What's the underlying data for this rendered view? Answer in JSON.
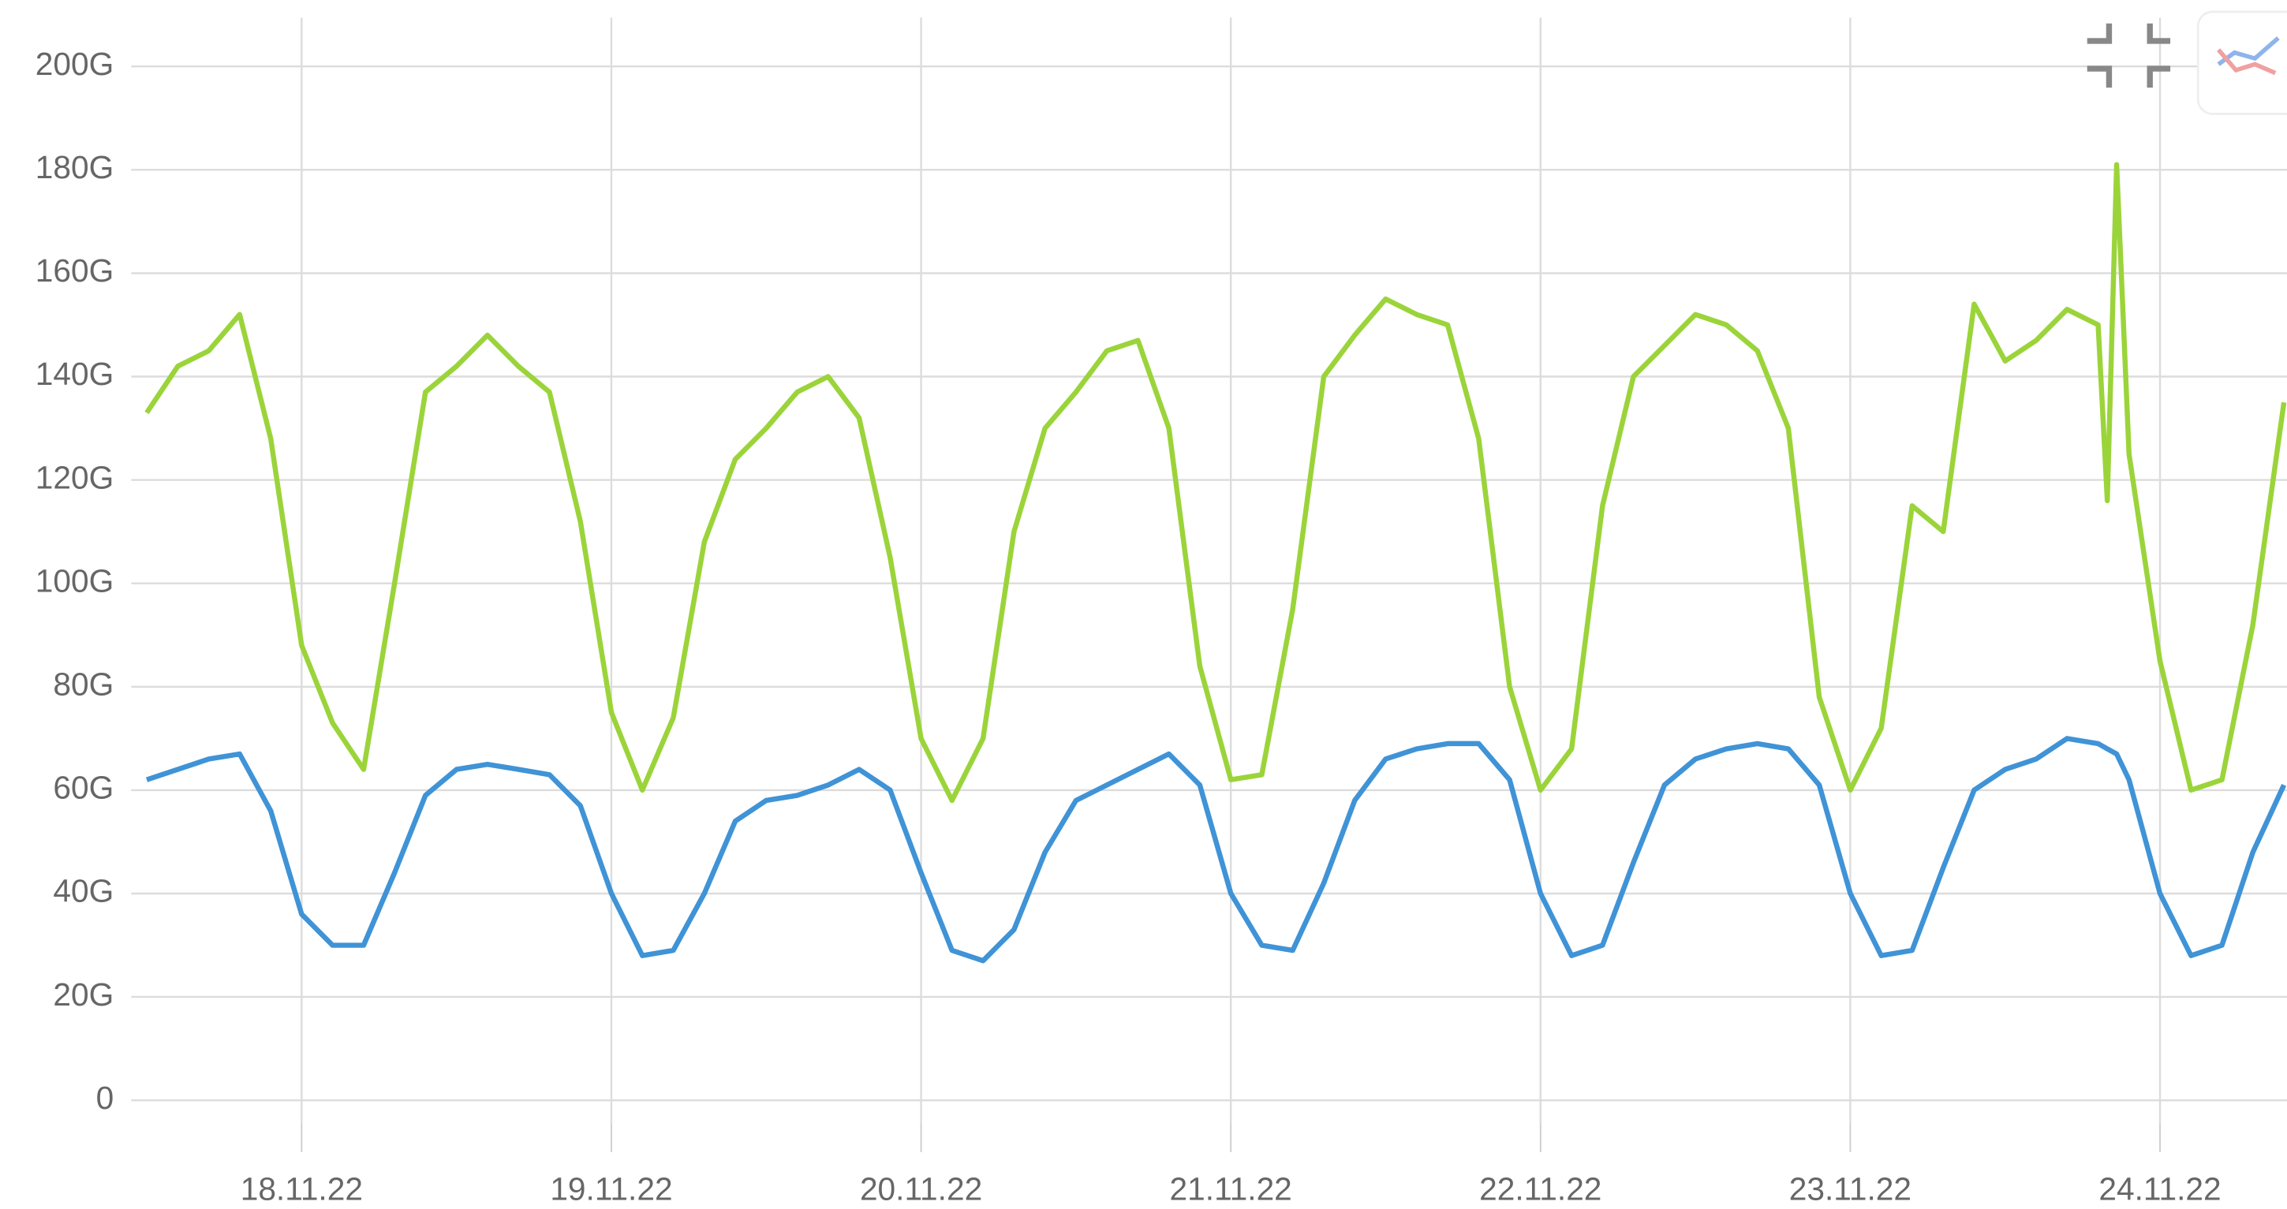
{
  "chart_data": {
    "type": "line",
    "x": [
      17.5,
      17.6,
      17.7,
      17.8,
      17.9,
      18.0,
      18.1,
      18.2,
      18.3,
      18.4,
      18.5,
      18.6,
      18.7,
      18.8,
      18.9,
      19.0,
      19.1,
      19.2,
      19.3,
      19.4,
      19.5,
      19.6,
      19.7,
      19.8,
      19.9,
      20.0,
      20.1,
      20.2,
      20.3,
      20.4,
      20.5,
      20.6,
      20.7,
      20.8,
      20.9,
      21.0,
      21.1,
      21.2,
      21.3,
      21.4,
      21.5,
      21.6,
      21.7,
      21.8,
      21.9,
      22.0,
      22.1,
      22.2,
      22.3,
      22.4,
      22.5,
      22.6,
      22.7,
      22.8,
      22.9,
      23.0,
      23.1,
      23.2,
      23.3,
      23.4,
      23.5,
      23.6,
      23.7,
      23.8,
      23.83,
      23.86,
      23.9,
      24.0,
      24.1,
      24.2,
      24.3,
      24.4
    ],
    "series": [
      {
        "color": "#9bd43a",
        "values": [
          133,
          142,
          145,
          152,
          128,
          88,
          73,
          64,
          100,
          137,
          142,
          148,
          142,
          137,
          112,
          75,
          60,
          74,
          108,
          124,
          130,
          137,
          140,
          132,
          105,
          70,
          58,
          70,
          110,
          130,
          137,
          145,
          147,
          130,
          84,
          62,
          63,
          95,
          140,
          148,
          155,
          152,
          150,
          128,
          80,
          60,
          68,
          115,
          140,
          146,
          152,
          150,
          145,
          130,
          78,
          60,
          72,
          115,
          110,
          154,
          143,
          147,
          153,
          150,
          116,
          181,
          125,
          85,
          60,
          62,
          92,
          135
        ]
      },
      {
        "color": "#3f93d6",
        "values": [
          62,
          64,
          66,
          67,
          56,
          36,
          30,
          30,
          44,
          59,
          64,
          65,
          64,
          63,
          57,
          40,
          28,
          29,
          40,
          54,
          58,
          59,
          61,
          64,
          60,
          44,
          29,
          27,
          33,
          48,
          58,
          61,
          64,
          67,
          61,
          40,
          30,
          29,
          42,
          58,
          66,
          68,
          69,
          69,
          62,
          40,
          28,
          30,
          46,
          61,
          66,
          68,
          69,
          68,
          61,
          40,
          28,
          29,
          45,
          60,
          64,
          66,
          70,
          69,
          68,
          67,
          62,
          40,
          28,
          30,
          48,
          61
        ]
      }
    ],
    "xlim": [
      17.45,
      24.41
    ],
    "xticks": [
      {
        "value": 18,
        "label": "18.11.22"
      },
      {
        "value": 19,
        "label": "19.11.22"
      },
      {
        "value": 20,
        "label": "20.11.22"
      },
      {
        "value": 21,
        "label": "21.11.22"
      },
      {
        "value": 22,
        "label": "22.11.22"
      },
      {
        "value": 23,
        "label": "23.11.22"
      },
      {
        "value": 24,
        "label": "24.11.22"
      }
    ],
    "ylim": [
      -10,
      210
    ],
    "yticks": [
      0,
      {
        "value": 20,
        "label": "20G"
      },
      {
        "value": 40,
        "label": "40G"
      },
      {
        "value": 60,
        "label": "60G"
      },
      {
        "value": 80,
        "label": "80G"
      },
      {
        "value": 100,
        "label": "100G"
      },
      {
        "value": 120,
        "label": "120G"
      },
      {
        "value": 140,
        "label": "140G"
      },
      {
        "value": 160,
        "label": "160G"
      },
      {
        "value": 180,
        "label": "180G"
      },
      {
        "value": {
          "v": 200
        },
        "label": "200G"
      }
    ],
    "grid": true
  }
}
